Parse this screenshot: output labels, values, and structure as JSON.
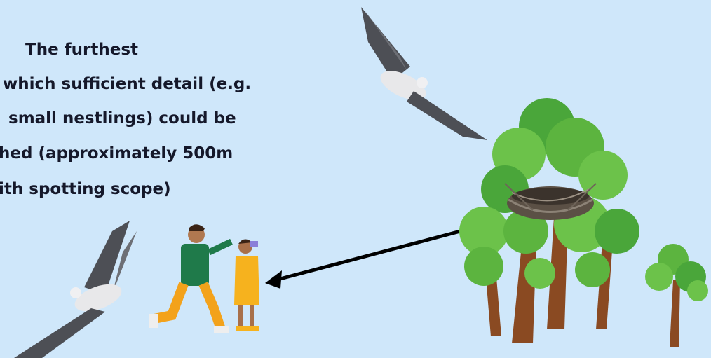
{
  "caption": {
    "lines": [
      "The furthest",
      "which sufficient detail (e.g.",
      "small nestlings) could be",
      "hed (approximately 500m",
      "ith spotting scope)"
    ]
  }
}
